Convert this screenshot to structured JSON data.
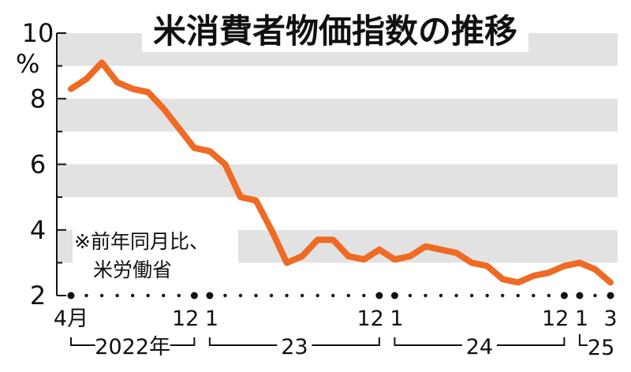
{
  "title": "米消費者物価指数の推移",
  "y_unit": "%",
  "note": [
    "※前年同月比、",
    "米労働省"
  ],
  "colors": {
    "line": "#ef6a23",
    "band": "#e2e2e2",
    "text": "#111111"
  },
  "chart_data": {
    "type": "line",
    "title": "米消費者物価指数の推移",
    "ylabel": "%",
    "ylim": [
      2,
      10
    ],
    "yticks": [
      2,
      4,
      6,
      8,
      10
    ],
    "grid": "alternating horizontal bands",
    "x": [
      "2022-04",
      "2022-05",
      "2022-06",
      "2022-07",
      "2022-08",
      "2022-09",
      "2022-10",
      "2022-11",
      "2022-12",
      "2023-01",
      "2023-02",
      "2023-03",
      "2023-04",
      "2023-05",
      "2023-06",
      "2023-07",
      "2023-08",
      "2023-09",
      "2023-10",
      "2023-11",
      "2023-12",
      "2024-01",
      "2024-02",
      "2024-03",
      "2024-04",
      "2024-05",
      "2024-06",
      "2024-07",
      "2024-08",
      "2024-09",
      "2024-10",
      "2024-11",
      "2024-12",
      "2025-01",
      "2025-02",
      "2025-03"
    ],
    "series": [
      {
        "values": [
          8.3,
          8.6,
          9.1,
          8.5,
          8.3,
          8.2,
          7.7,
          7.1,
          6.5,
          6.4,
          6.0,
          5.0,
          4.9,
          4.0,
          3.0,
          3.2,
          3.7,
          3.7,
          3.2,
          3.1,
          3.4,
          3.1,
          3.2,
          3.5,
          3.4,
          3.3,
          3.0,
          2.9,
          2.5,
          2.4,
          2.6,
          2.7,
          2.9,
          3.0,
          2.8,
          2.4
        ]
      }
    ],
    "tick_labels": [
      {
        "index": 0,
        "label": "4月"
      },
      {
        "index": 8,
        "label": "12"
      },
      {
        "index": 9,
        "label": "1"
      },
      {
        "index": 20,
        "label": "12"
      },
      {
        "index": 21,
        "label": "1"
      },
      {
        "index": 32,
        "label": "12"
      },
      {
        "index": 33,
        "label": "1"
      },
      {
        "index": 35,
        "label": "3"
      }
    ],
    "emphasized_ticks": [
      0,
      8,
      9,
      20,
      21,
      32,
      33,
      35
    ],
    "year_labels": [
      {
        "from": 0,
        "to": 8,
        "label": "2022年"
      },
      {
        "from": 9,
        "to": 20,
        "label": "23"
      },
      {
        "from": 21,
        "to": 32,
        "label": "24"
      },
      {
        "from": 33,
        "to": 35,
        "label": "25"
      }
    ]
  }
}
